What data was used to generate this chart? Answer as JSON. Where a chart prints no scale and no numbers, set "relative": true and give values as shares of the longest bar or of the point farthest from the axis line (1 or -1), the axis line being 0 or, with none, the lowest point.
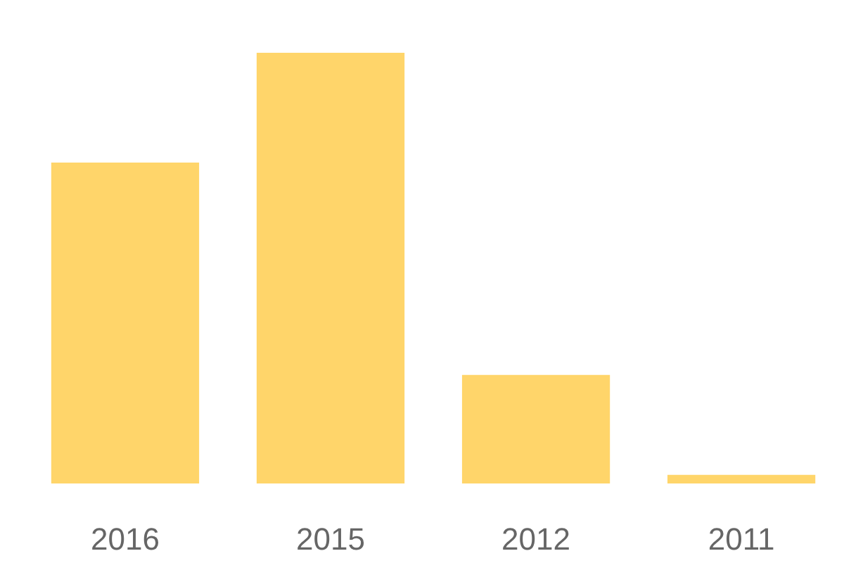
{
  "chart_data": {
    "type": "bar",
    "relative": true,
    "categories": [
      "2016",
      "2015",
      "2012",
      "2011"
    ],
    "values": [
      0.745,
      1,
      0.252,
      0.02
    ],
    "color": "#ffd56a"
  }
}
